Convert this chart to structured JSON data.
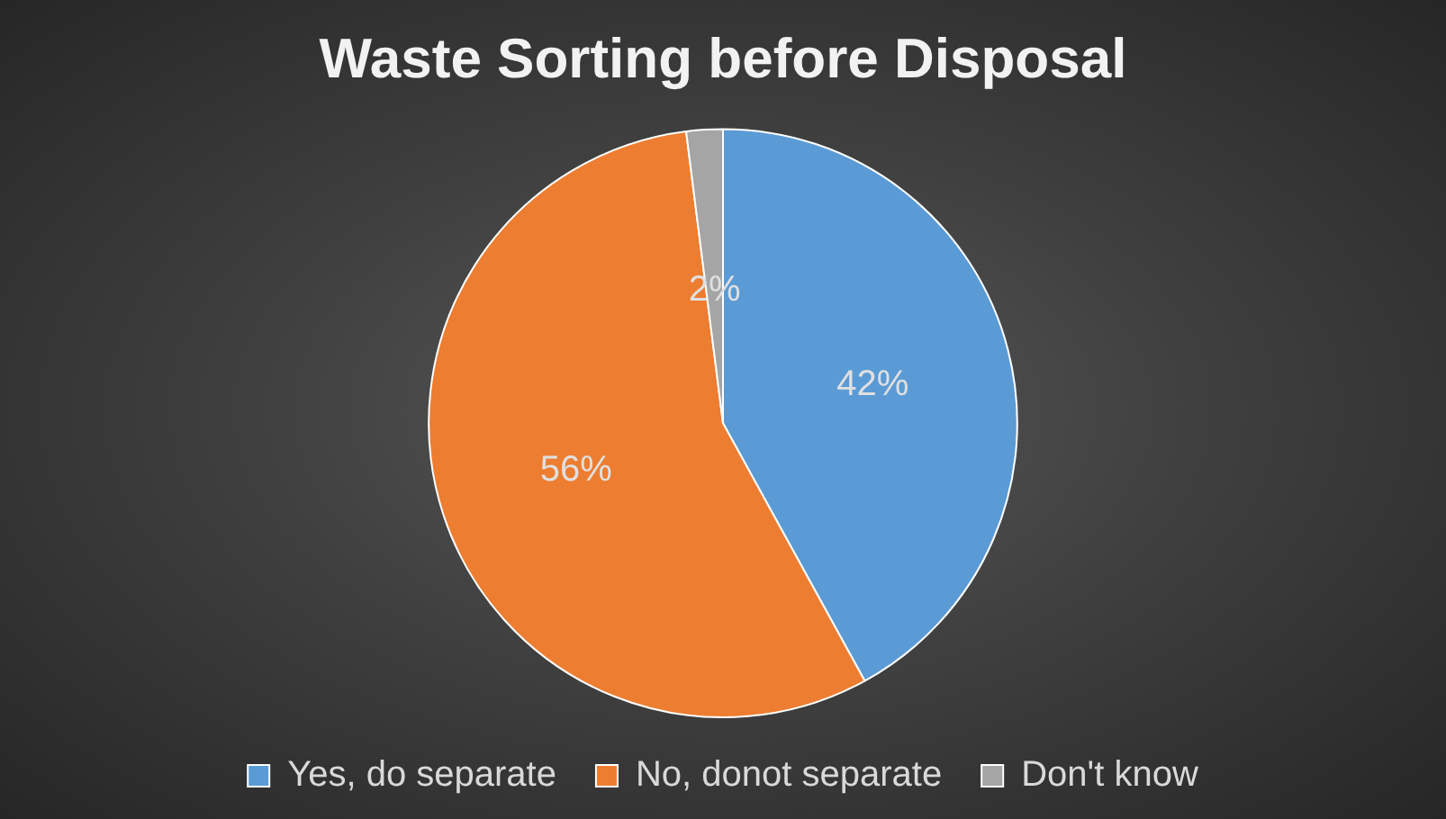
{
  "chart_data": {
    "type": "pie",
    "title": "Waste Sorting before Disposal",
    "categories": [
      "Yes, do separate",
      "No, donot separate",
      "Don't know"
    ],
    "values": [
      42,
      56,
      2
    ],
    "value_labels": [
      "42%",
      "56%",
      "2%"
    ],
    "colors": [
      "#5b9bd5",
      "#ed7d31",
      "#a5a5a5"
    ],
    "legend": "bottom"
  }
}
